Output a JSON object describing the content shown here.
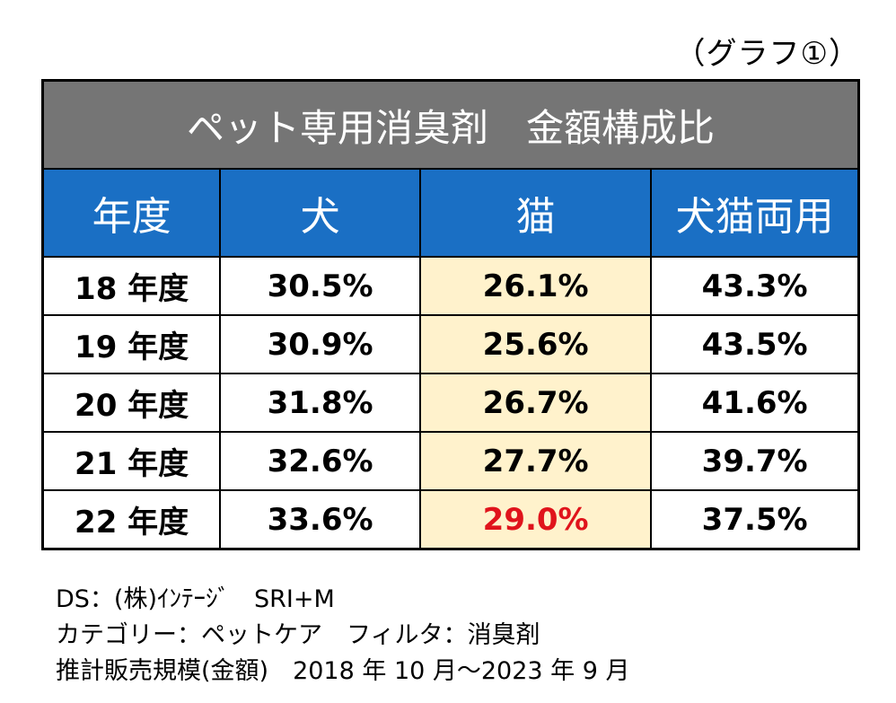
{
  "graph_label": "（グラフ①）",
  "chart_data": {
    "type": "table",
    "title": "ペット専用消臭剤　金額構成比",
    "columns": [
      "年度",
      "犬",
      "猫",
      "犬猫両用"
    ],
    "rows": [
      {
        "year": "18 年度",
        "dog": "30.5%",
        "cat": "26.1%",
        "both": "43.3%"
      },
      {
        "year": "19 年度",
        "dog": "30.9%",
        "cat": "25.6%",
        "both": "43.5%"
      },
      {
        "year": "20 年度",
        "dog": "31.8%",
        "cat": "26.7%",
        "both": "41.6%"
      },
      {
        "year": "21 年度",
        "dog": "32.6%",
        "cat": "27.7%",
        "both": "39.7%"
      },
      {
        "year": "22 年度",
        "dog": "33.6%",
        "cat": "29.0%",
        "both": "37.5%"
      }
    ],
    "highlight": {
      "row": 4,
      "column": "cat",
      "color": "#e0141c"
    }
  },
  "colors": {
    "title_bg": "#757575",
    "header_bg": "#1a6fc4",
    "cat_column_bg": "#fff2cc",
    "highlight_text": "#e0141c"
  },
  "footer": {
    "line1": "DS：(株)ｲﾝﾃｰｼﾞ　SRI+M",
    "line2": "カテゴリー：ペットケア　フィルタ：消臭剤",
    "line3": "推計販売規模(金額)　2018 年 10 月～2023 年 9 月"
  }
}
